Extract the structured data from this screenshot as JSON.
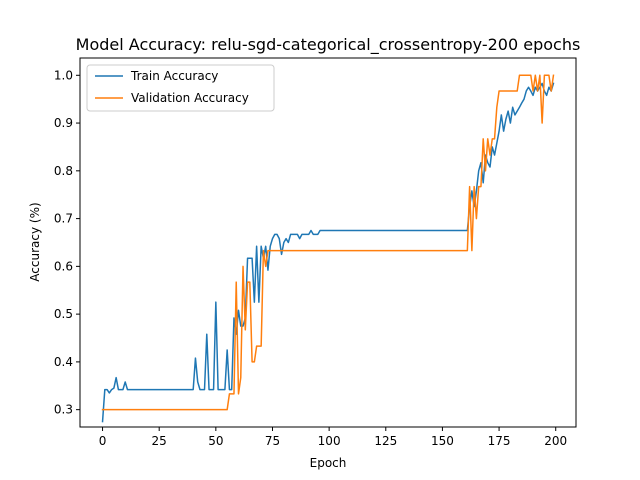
{
  "chart_data": {
    "type": "line",
    "title": "Model Accuracy: relu-sgd-categorical_crossentropy-200 epochs",
    "xlabel": "Epoch",
    "ylabel": "Accuracy (%)",
    "xlim": [
      -9.95,
      208.95
    ],
    "ylim": [
      0.2637,
      1.0362
    ],
    "xticks": [
      0,
      25,
      50,
      75,
      100,
      125,
      150,
      175,
      200
    ],
    "xtick_labels": [
      "0",
      "25",
      "50",
      "75",
      "100",
      "125",
      "150",
      "175",
      "200"
    ],
    "yticks": [
      0.3,
      0.4,
      0.5,
      0.6,
      0.7,
      0.8,
      0.9,
      1.0
    ],
    "ytick_labels": [
      "0.3",
      "0.4",
      "0.5",
      "0.6",
      "0.7",
      "0.8",
      "0.9",
      "1.0"
    ],
    "grid": false,
    "legend_position": "top-left",
    "series": [
      {
        "name": "Train Accuracy",
        "color": "#1f77b4",
        "points": [
          [
            0,
            0.275
          ],
          [
            1,
            0.342
          ],
          [
            2,
            0.342
          ],
          [
            3,
            0.335
          ],
          [
            4,
            0.342
          ],
          [
            5,
            0.345
          ],
          [
            6,
            0.367
          ],
          [
            7,
            0.342
          ],
          [
            8,
            0.342
          ],
          [
            9,
            0.342
          ],
          [
            10,
            0.358
          ],
          [
            11,
            0.342
          ],
          [
            15,
            0.342
          ],
          [
            20,
            0.342
          ],
          [
            25,
            0.342
          ],
          [
            30,
            0.342
          ],
          [
            35,
            0.342
          ],
          [
            40,
            0.342
          ],
          [
            41,
            0.408
          ],
          [
            42,
            0.358
          ],
          [
            43,
            0.342
          ],
          [
            44,
            0.342
          ],
          [
            45,
            0.342
          ],
          [
            46,
            0.458
          ],
          [
            47,
            0.342
          ],
          [
            48,
            0.342
          ],
          [
            49,
            0.342
          ],
          [
            50,
            0.525
          ],
          [
            51,
            0.342
          ],
          [
            52,
            0.342
          ],
          [
            53,
            0.342
          ],
          [
            54,
            0.342
          ],
          [
            55,
            0.425
          ],
          [
            56,
            0.342
          ],
          [
            57,
            0.342
          ],
          [
            58,
            0.492
          ],
          [
            59,
            0.458
          ],
          [
            60,
            0.508
          ],
          [
            61,
            0.475
          ],
          [
            62,
            0.475
          ],
          [
            63,
            0.492
          ],
          [
            64,
            0.617
          ],
          [
            65,
            0.617
          ],
          [
            66,
            0.617
          ],
          [
            67,
            0.525
          ],
          [
            68,
            0.642
          ],
          [
            69,
            0.525
          ],
          [
            70,
            0.642
          ],
          [
            71,
            0.617
          ],
          [
            72,
            0.642
          ],
          [
            73,
            0.592
          ],
          [
            74,
            0.642
          ],
          [
            75,
            0.658
          ],
          [
            76,
            0.667
          ],
          [
            77,
            0.667
          ],
          [
            78,
            0.658
          ],
          [
            79,
            0.625
          ],
          [
            80,
            0.65
          ],
          [
            81,
            0.658
          ],
          [
            82,
            0.65
          ],
          [
            83,
            0.667
          ],
          [
            84,
            0.667
          ],
          [
            85,
            0.667
          ],
          [
            86,
            0.667
          ],
          [
            87,
            0.658
          ],
          [
            88,
            0.667
          ],
          [
            89,
            0.667
          ],
          [
            90,
            0.667
          ],
          [
            91,
            0.667
          ],
          [
            92,
            0.675
          ],
          [
            93,
            0.667
          ],
          [
            94,
            0.667
          ],
          [
            95,
            0.667
          ],
          [
            96,
            0.675
          ],
          [
            100,
            0.675
          ],
          [
            110,
            0.675
          ],
          [
            120,
            0.675
          ],
          [
            130,
            0.675
          ],
          [
            140,
            0.675
          ],
          [
            150,
            0.675
          ],
          [
            160,
            0.675
          ],
          [
            161,
            0.675
          ],
          [
            162,
            0.725
          ],
          [
            163,
            0.758
          ],
          [
            164,
            0.725
          ],
          [
            165,
            0.758
          ],
          [
            166,
            0.8
          ],
          [
            167,
            0.817
          ],
          [
            168,
            0.775
          ],
          [
            169,
            0.833
          ],
          [
            170,
            0.817
          ],
          [
            171,
            0.808
          ],
          [
            172,
            0.85
          ],
          [
            173,
            0.833
          ],
          [
            174,
            0.858
          ],
          [
            175,
            0.883
          ],
          [
            176,
            0.917
          ],
          [
            177,
            0.883
          ],
          [
            178,
            0.908
          ],
          [
            179,
            0.925
          ],
          [
            180,
            0.9
          ],
          [
            181,
            0.933
          ],
          [
            182,
            0.917
          ],
          [
            183,
            0.925
          ],
          [
            184,
            0.933
          ],
          [
            185,
            0.942
          ],
          [
            186,
            0.95
          ],
          [
            187,
            0.967
          ],
          [
            188,
            0.975
          ],
          [
            189,
            0.967
          ],
          [
            190,
            0.958
          ],
          [
            191,
            0.975
          ],
          [
            192,
            0.967
          ],
          [
            193,
            0.975
          ],
          [
            194,
            0.983
          ],
          [
            195,
            0.967
          ],
          [
            196,
            0.958
          ],
          [
            197,
            0.975
          ],
          [
            198,
            0.967
          ],
          [
            199,
            0.983
          ]
        ]
      },
      {
        "name": "Validation Accuracy",
        "color": "#ff7f0e",
        "points": [
          [
            0,
            0.3
          ],
          [
            10,
            0.3
          ],
          [
            20,
            0.3
          ],
          [
            30,
            0.3
          ],
          [
            40,
            0.3
          ],
          [
            50,
            0.3
          ],
          [
            55,
            0.3
          ],
          [
            56,
            0.333
          ],
          [
            57,
            0.333
          ],
          [
            58,
            0.333
          ],
          [
            59,
            0.567
          ],
          [
            60,
            0.333
          ],
          [
            61,
            0.367
          ],
          [
            62,
            0.6
          ],
          [
            63,
            0.467
          ],
          [
            64,
            0.567
          ],
          [
            65,
            0.567
          ],
          [
            66,
            0.4
          ],
          [
            67,
            0.4
          ],
          [
            68,
            0.433
          ],
          [
            69,
            0.433
          ],
          [
            70,
            0.433
          ],
          [
            71,
            0.633
          ],
          [
            72,
            0.6
          ],
          [
            73,
            0.633
          ],
          [
            74,
            0.633
          ],
          [
            80,
            0.633
          ],
          [
            90,
            0.633
          ],
          [
            100,
            0.633
          ],
          [
            110,
            0.633
          ],
          [
            120,
            0.633
          ],
          [
            130,
            0.633
          ],
          [
            140,
            0.633
          ],
          [
            150,
            0.633
          ],
          [
            160,
            0.633
          ],
          [
            161,
            0.633
          ],
          [
            162,
            0.767
          ],
          [
            163,
            0.633
          ],
          [
            164,
            0.767
          ],
          [
            165,
            0.7
          ],
          [
            166,
            0.767
          ],
          [
            167,
            0.767
          ],
          [
            168,
            0.867
          ],
          [
            169,
            0.8
          ],
          [
            170,
            0.867
          ],
          [
            171,
            0.833
          ],
          [
            172,
            0.867
          ],
          [
            173,
            0.867
          ],
          [
            174,
            0.933
          ],
          [
            175,
            0.967
          ],
          [
            176,
            0.967
          ],
          [
            180,
            0.967
          ],
          [
            183,
            0.967
          ],
          [
            184,
            1.0
          ],
          [
            185,
            1.0
          ],
          [
            188,
            1.0
          ],
          [
            189,
            1.0
          ],
          [
            190,
            0.967
          ],
          [
            191,
            1.0
          ],
          [
            192,
            0.967
          ],
          [
            193,
            1.0
          ],
          [
            194,
            0.9
          ],
          [
            195,
            1.0
          ],
          [
            196,
            1.0
          ],
          [
            197,
            1.0
          ],
          [
            198,
            0.967
          ],
          [
            199,
            1.0
          ]
        ]
      }
    ]
  }
}
